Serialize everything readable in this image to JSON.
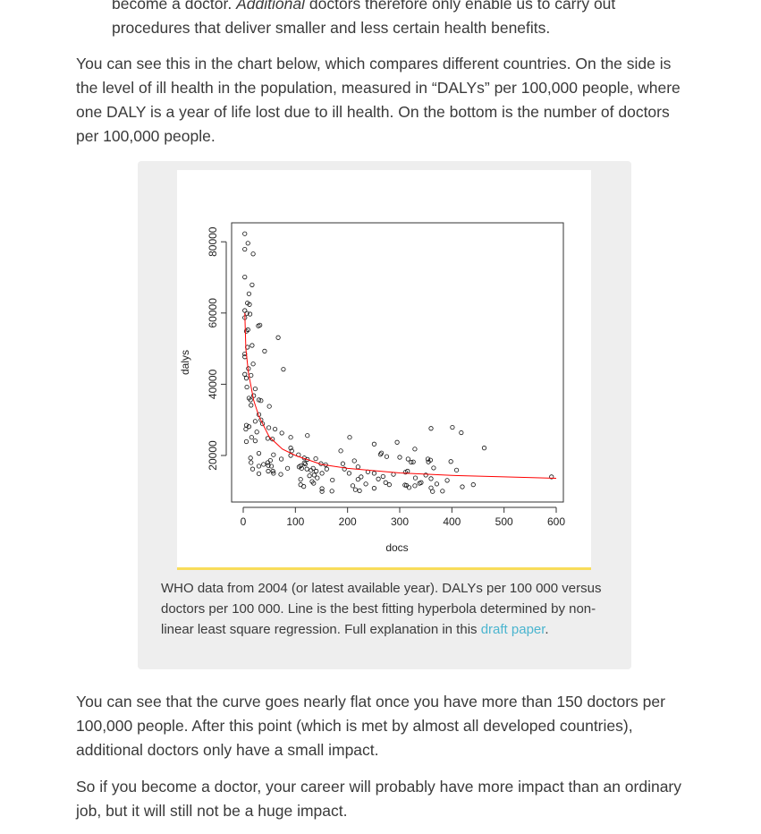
{
  "intro": {
    "line1_pre": "become a doctor. ",
    "line1_em": "Additional",
    "line1_post": " doctors therefore only enable us to carry out",
    "line2": "procedures that deliver smaller and less certain health benefits."
  },
  "para1": "You can see this in the chart below, which compares different countries. On the side is the level of ill health in the population, measured in “DALYs” per 100,000 people, where one DALY is a year of life lost due to ill health. On the bottom is the number of doctors per 100,000 people.",
  "figure": {
    "caption_text": "WHO data from 2004 (or latest available year). DALYs per 100 000 versus doctors per 100 000. Line is the best fitting hyperbola determined by non-linear least square regression. Full explanation in this ",
    "caption_link": "draft paper",
    "caption_end": "."
  },
  "para2": "You can see that the curve goes nearly flat once you have more than 150 doctors per 100,000 people. After this point (which is met by almost all developed countries), additional doctors only have a small impact.",
  "para3": "So if you become a doctor, your career will probably have more impact than an ordinary job, but it will still not be a huge impact.",
  "colors": {
    "link": "#4bb5cf",
    "figure_bg": "#eeeeee",
    "image_border": "#f8dc5a",
    "fit_line": "#ff0000"
  },
  "chart_data": {
    "type": "scatter",
    "xlabel": "docs",
    "ylabel": "dalys",
    "xlim": [
      -15,
      615
    ],
    "ylim": [
      7000,
      85000
    ],
    "x_ticks": [
      "0",
      "100",
      "200",
      "300",
      "400",
      "500",
      "600"
    ],
    "y_ticks": [
      "20000",
      "40000",
      "60000",
      "80000"
    ],
    "grid": false,
    "points": [
      [
        3,
        82260
      ],
      [
        3,
        77900
      ],
      [
        9,
        79600
      ],
      [
        19,
        76600
      ],
      [
        3,
        70100
      ],
      [
        17,
        67900
      ],
      [
        11,
        65400
      ],
      [
        8,
        62800
      ],
      [
        12,
        62400
      ],
      [
        3,
        60700
      ],
      [
        7,
        59900
      ],
      [
        13,
        59700
      ],
      [
        3,
        58700
      ],
      [
        9,
        55300
      ],
      [
        6,
        54900
      ],
      [
        29,
        56400
      ],
      [
        32,
        56600
      ],
      [
        67,
        53100
      ],
      [
        17,
        50900
      ],
      [
        8,
        50400
      ],
      [
        41,
        49300
      ],
      [
        3,
        48500
      ],
      [
        3,
        47700
      ],
      [
        19,
        45700
      ],
      [
        10,
        44400
      ],
      [
        77,
        44200
      ],
      [
        15,
        42500
      ],
      [
        3,
        42800
      ],
      [
        6,
        41700
      ],
      [
        7,
        39200
      ],
      [
        23,
        38700
      ],
      [
        20,
        36800
      ],
      [
        11,
        36100
      ],
      [
        14,
        35600
      ],
      [
        30,
        35600
      ],
      [
        34,
        35400
      ],
      [
        15,
        34100
      ],
      [
        50,
        33800
      ],
      [
        30,
        31500
      ],
      [
        34,
        30000
      ],
      [
        23,
        29600
      ],
      [
        37,
        28900
      ],
      [
        6,
        28500
      ],
      [
        11,
        28100
      ],
      [
        5,
        27400
      ],
      [
        49,
        27800
      ],
      [
        61,
        27400
      ],
      [
        26,
        26600
      ],
      [
        74,
        26300
      ],
      [
        123,
        25600
      ],
      [
        91,
        25100
      ],
      [
        16,
        25100
      ],
      [
        47,
        24800
      ],
      [
        56,
        24600
      ],
      [
        6,
        23900
      ],
      [
        23,
        24100
      ],
      [
        204,
        25100
      ],
      [
        251,
        23200
      ],
      [
        295,
        23700
      ],
      [
        360,
        27600
      ],
      [
        401,
        27900
      ],
      [
        418,
        26400
      ],
      [
        462,
        22100
      ],
      [
        329,
        21800
      ],
      [
        187,
        21300
      ],
      [
        91,
        22100
      ],
      [
        93,
        21300
      ],
      [
        30,
        20600
      ],
      [
        58,
        20200
      ],
      [
        106,
        20200
      ],
      [
        91,
        20000
      ],
      [
        14,
        19300
      ],
      [
        73,
        19000
      ],
      [
        139,
        19100
      ],
      [
        117,
        19300
      ],
      [
        123,
        18900
      ],
      [
        265,
        20700
      ],
      [
        263,
        20300
      ],
      [
        275,
        19700
      ],
      [
        300,
        19500
      ],
      [
        316,
        19000
      ],
      [
        322,
        18100
      ],
      [
        326,
        18200
      ],
      [
        354,
        19000
      ],
      [
        359,
        18700
      ],
      [
        355,
        18200
      ],
      [
        398,
        18300
      ],
      [
        213,
        18500
      ],
      [
        191,
        17700
      ],
      [
        47,
        18000
      ],
      [
        52,
        18600
      ],
      [
        15,
        18000
      ],
      [
        39,
        17500
      ],
      [
        48,
        17200
      ],
      [
        54,
        17000
      ],
      [
        117,
        17900
      ],
      [
        119,
        17600
      ],
      [
        149,
        17700
      ],
      [
        158,
        17400
      ],
      [
        85,
        16400
      ],
      [
        107,
        16800
      ],
      [
        112,
        16400
      ],
      [
        110,
        17100
      ],
      [
        122,
        16200
      ],
      [
        134,
        16400
      ],
      [
        140,
        15600
      ],
      [
        160,
        16200
      ],
      [
        194,
        16200
      ],
      [
        220,
        16800
      ],
      [
        18,
        16200
      ],
      [
        30,
        17000
      ],
      [
        48,
        15600
      ],
      [
        57,
        15600
      ],
      [
        58,
        15000
      ],
      [
        130,
        15800
      ],
      [
        151,
        15000
      ],
      [
        203,
        15000
      ],
      [
        239,
        15400
      ],
      [
        251,
        15000
      ],
      [
        315,
        15600
      ],
      [
        311,
        15300
      ],
      [
        365,
        16500
      ],
      [
        409,
        15900
      ],
      [
        30,
        14900
      ],
      [
        72,
        14700
      ],
      [
        127,
        14300
      ],
      [
        136,
        14500
      ],
      [
        142,
        13700
      ],
      [
        226,
        14000
      ],
      [
        268,
        14100
      ],
      [
        288,
        14700
      ],
      [
        350,
        14500
      ],
      [
        330,
        13700
      ],
      [
        360,
        13500
      ],
      [
        259,
        13400
      ],
      [
        110,
        13300
      ],
      [
        171,
        13100
      ],
      [
        220,
        13300
      ],
      [
        391,
        13000
      ],
      [
        132,
        12700
      ],
      [
        135,
        12200
      ],
      [
        235,
        12000
      ],
      [
        273,
        12400
      ],
      [
        280,
        11800
      ],
      [
        310,
        11700
      ],
      [
        313,
        11600
      ],
      [
        329,
        11500
      ],
      [
        338,
        12200
      ],
      [
        341,
        12400
      ],
      [
        371,
        12000
      ],
      [
        441,
        11800
      ],
      [
        110,
        11800
      ],
      [
        116,
        11300
      ],
      [
        210,
        11500
      ],
      [
        215,
        10400
      ],
      [
        223,
        10100
      ],
      [
        251,
        10800
      ],
      [
        318,
        11000
      ],
      [
        420,
        11200
      ],
      [
        360,
        10900
      ],
      [
        151,
        10700
      ],
      [
        151,
        9900
      ],
      [
        170,
        10000
      ],
      [
        363,
        9900
      ],
      [
        382,
        10000
      ],
      [
        591,
        14000
      ]
    ],
    "fit_line": [
      [
        3,
        60000
      ],
      [
        5,
        50000
      ],
      [
        10,
        43200
      ],
      [
        20,
        35500
      ],
      [
        30,
        31000
      ],
      [
        50,
        25200
      ],
      [
        75,
        21800
      ],
      [
        100,
        20000
      ],
      [
        150,
        17500
      ],
      [
        200,
        16400
      ],
      [
        300,
        15100
      ],
      [
        400,
        14400
      ],
      [
        500,
        14000
      ],
      [
        600,
        13600
      ]
    ]
  }
}
